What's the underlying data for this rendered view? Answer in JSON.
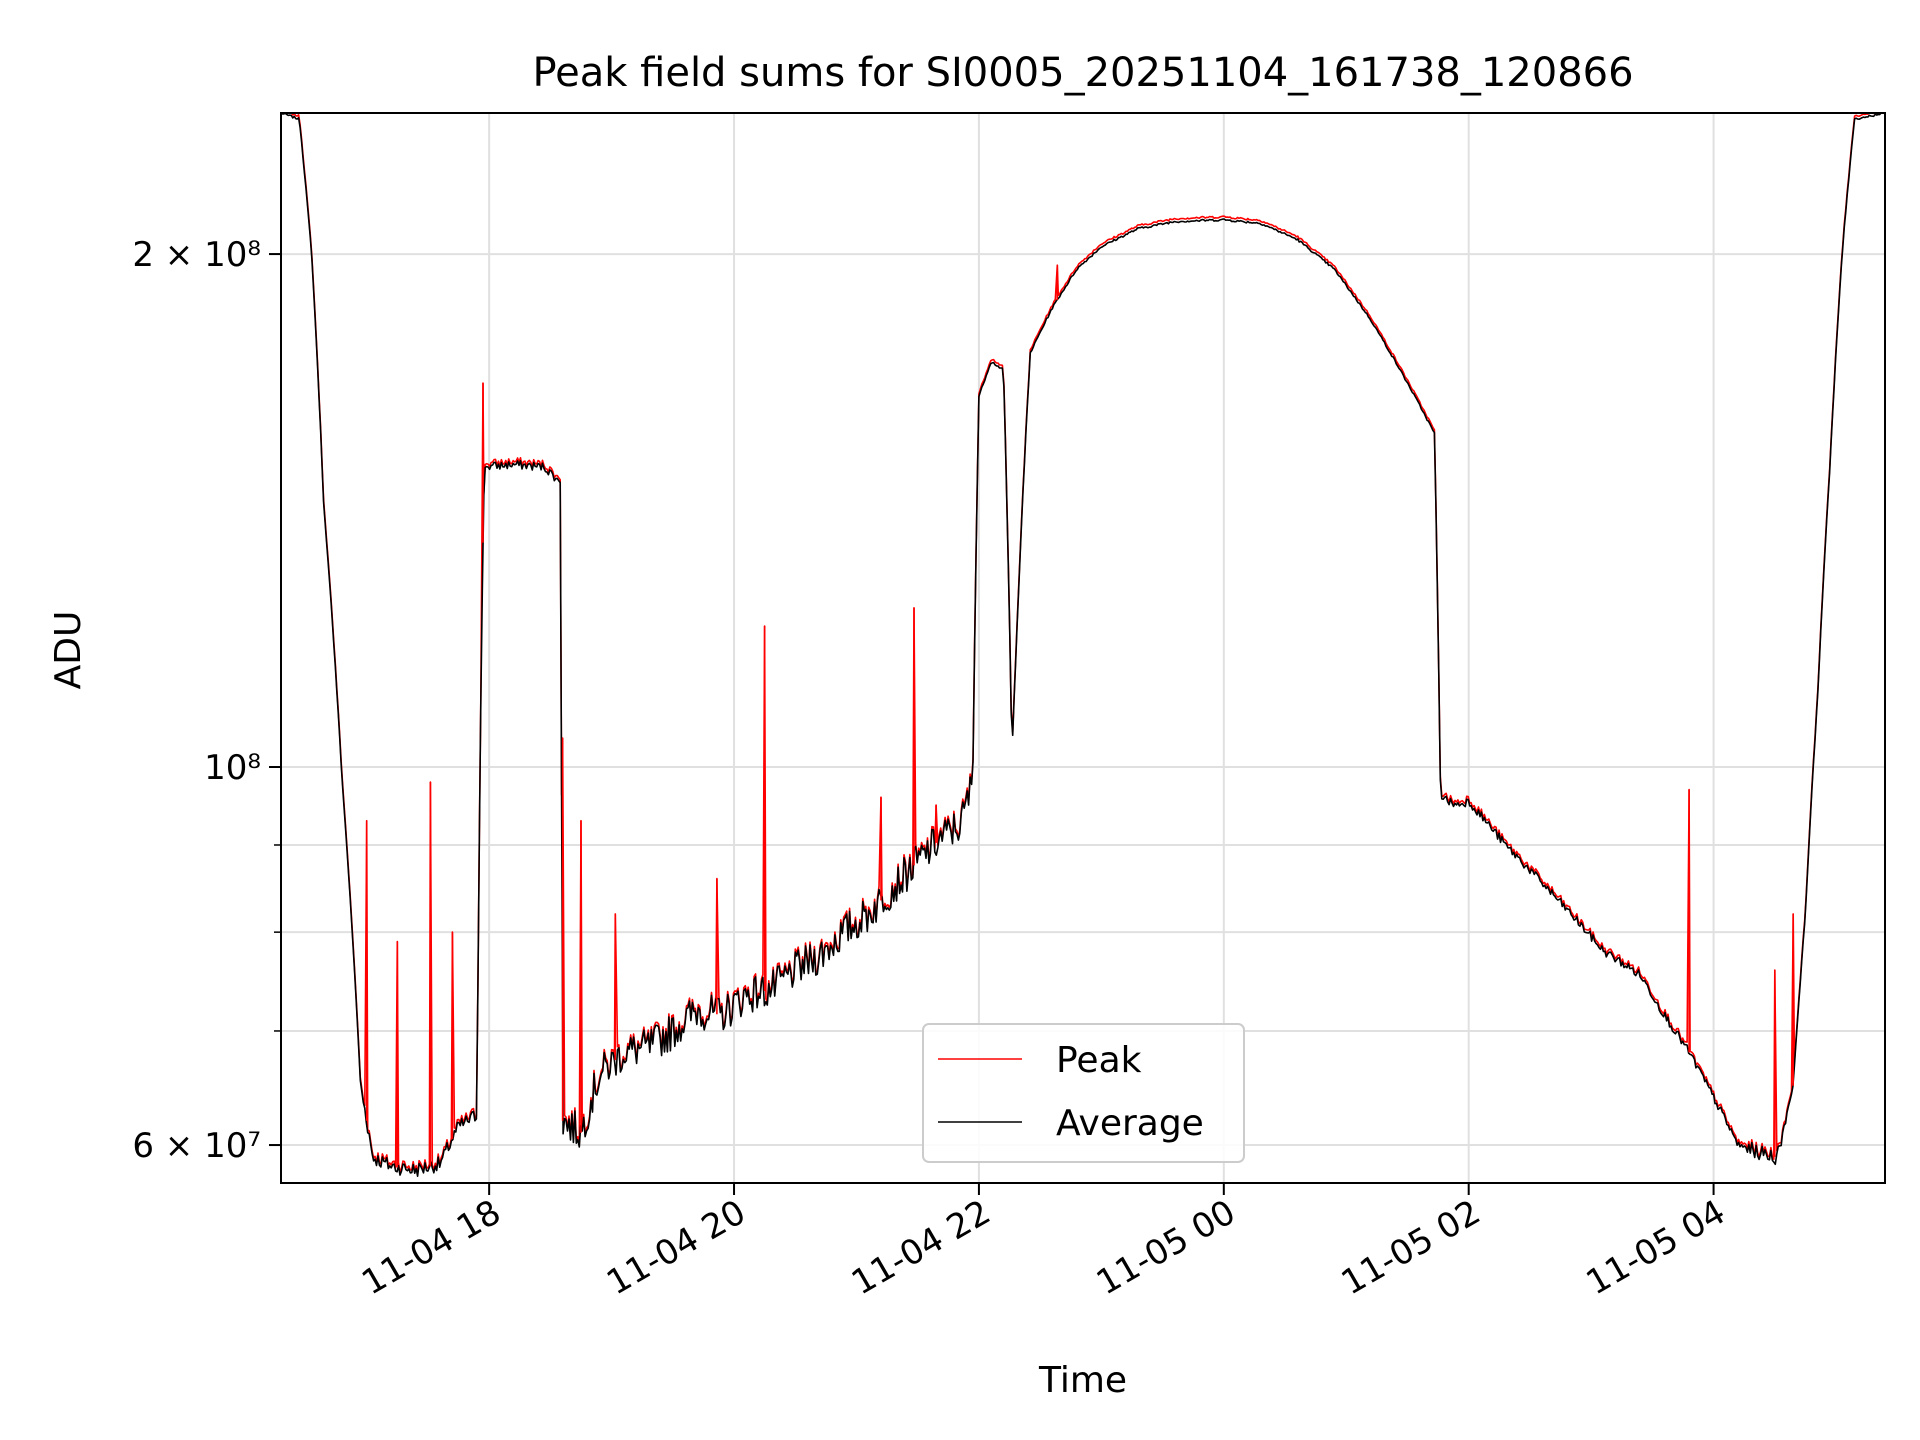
{
  "chart_data": {
    "type": "line",
    "title": "Peak field sums for SI0005_20251104_161738_120866",
    "xlabel": "Time",
    "ylabel": "ADU",
    "x_range_hours": [
      16.3,
      29.4
    ],
    "ylim": [
      57000000,
      242000000
    ],
    "y_scale": "log",
    "grid": true,
    "legend_position": "lower-center",
    "legend": [
      "Peak",
      "Average"
    ],
    "x_ticks": [
      {
        "hour": 18,
        "label": "11-04 18"
      },
      {
        "hour": 20,
        "label": "11-04 20"
      },
      {
        "hour": 22,
        "label": "11-04 22"
      },
      {
        "hour": 24,
        "label": "11-05 00"
      },
      {
        "hour": 26,
        "label": "11-05 02"
      },
      {
        "hour": 28,
        "label": "11-05 04"
      }
    ],
    "y_major_ticks": [
      {
        "value": 60000000,
        "label": "6 × 10⁷"
      },
      {
        "value": 100000000,
        "label": "10⁸"
      },
      {
        "value": 200000000,
        "label": "2 × 10⁸"
      }
    ],
    "y_minor_ticks": [
      70000000,
      80000000,
      90000000
    ],
    "series": [
      {
        "name": "Average",
        "color": "#000000",
        "points": [
          [
            16.3,
            242000000
          ],
          [
            16.45,
            240000000
          ],
          [
            16.55,
            200000000
          ],
          [
            16.65,
            142000000
          ],
          [
            16.8,
            98000000
          ],
          [
            16.95,
            65000000
          ],
          [
            17.05,
            59000000
          ],
          [
            17.2,
            58300000
          ],
          [
            17.4,
            58000000
          ],
          [
            17.6,
            58500000
          ],
          [
            17.75,
            61500000
          ],
          [
            17.9,
            62500000
          ],
          [
            17.96,
            150000000
          ],
          [
            18.2,
            150500000
          ],
          [
            18.45,
            150000000
          ],
          [
            18.58,
            147000000
          ],
          [
            18.6,
            62000000
          ],
          [
            18.75,
            61000000
          ],
          [
            18.9,
            66000000
          ],
          [
            19.1,
            68000000
          ],
          [
            19.3,
            68500000
          ],
          [
            19.5,
            70000000
          ],
          [
            19.7,
            72000000
          ],
          [
            19.9,
            71500000
          ],
          [
            20.1,
            73500000
          ],
          [
            20.3,
            74000000
          ],
          [
            20.5,
            76000000
          ],
          [
            20.7,
            77500000
          ],
          [
            20.9,
            80000000
          ],
          [
            21.1,
            82000000
          ],
          [
            21.3,
            85000000
          ],
          [
            21.5,
            88000000
          ],
          [
            21.7,
            91000000
          ],
          [
            21.85,
            92500000
          ],
          [
            21.95,
            98000000
          ],
          [
            22.0,
            165000000
          ],
          [
            22.1,
            173000000
          ],
          [
            22.2,
            171000000
          ],
          [
            22.27,
            101500000
          ],
          [
            22.32,
            125000000
          ],
          [
            22.42,
            175000000
          ],
          [
            22.6,
            186000000
          ],
          [
            22.8,
            196000000
          ],
          [
            23.0,
            202000000
          ],
          [
            23.3,
            207000000
          ],
          [
            23.6,
            209000000
          ],
          [
            24.0,
            209500000
          ],
          [
            24.3,
            208500000
          ],
          [
            24.6,
            204000000
          ],
          [
            24.9,
            196000000
          ],
          [
            25.2,
            183000000
          ],
          [
            25.5,
            168000000
          ],
          [
            25.72,
            157000000
          ],
          [
            25.77,
            96000000
          ],
          [
            25.9,
            95000000
          ],
          [
            26.0,
            95500000
          ],
          [
            26.3,
            90000000
          ],
          [
            26.6,
            85500000
          ],
          [
            26.9,
            81000000
          ],
          [
            27.1,
            78000000
          ],
          [
            27.4,
            75500000
          ],
          [
            27.6,
            71500000
          ],
          [
            27.8,
            68000000
          ],
          [
            28.0,
            64000000
          ],
          [
            28.2,
            60000000
          ],
          [
            28.4,
            59300000
          ],
          [
            28.52,
            59000000
          ],
          [
            28.65,
            65000000
          ],
          [
            28.75,
            82000000
          ],
          [
            28.85,
            110000000
          ],
          [
            28.95,
            150000000
          ],
          [
            29.05,
            200000000
          ],
          [
            29.15,
            240000000
          ],
          [
            29.4,
            242000000
          ]
        ]
      },
      {
        "name": "Peak",
        "color": "#ff0000",
        "spikes": [
          [
            17.0,
            93000000
          ],
          [
            17.25,
            79000000
          ],
          [
            17.52,
            98000000
          ],
          [
            17.7,
            80000000
          ],
          [
            17.95,
            168000000
          ],
          [
            18.6,
            104000000
          ],
          [
            18.75,
            93000000
          ],
          [
            19.03,
            82000000
          ],
          [
            19.86,
            86000000
          ],
          [
            20.25,
            121000000
          ],
          [
            21.2,
            96000000
          ],
          [
            21.47,
            124000000
          ],
          [
            21.65,
            95000000
          ],
          [
            22.64,
            197000000
          ],
          [
            27.8,
            97000000
          ],
          [
            28.5,
            76000000
          ],
          [
            28.65,
            82000000
          ]
        ]
      }
    ]
  }
}
